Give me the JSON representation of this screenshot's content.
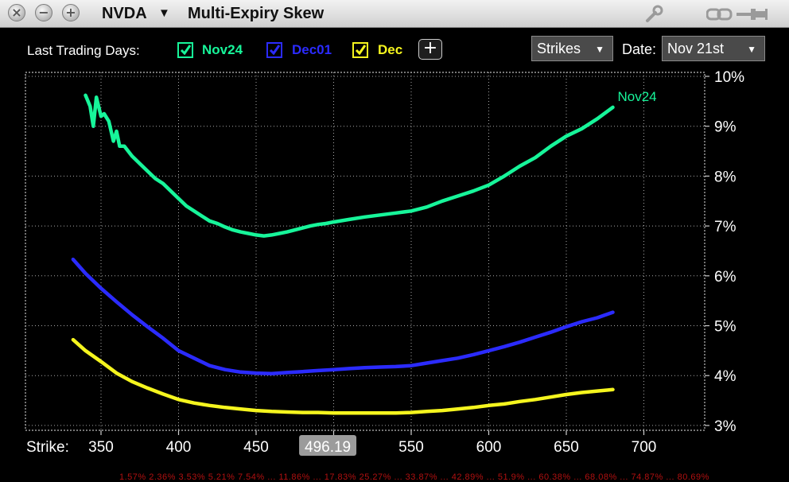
{
  "window": {
    "ticker": "NVDA",
    "title": "Multi-Expiry Skew"
  },
  "controls": {
    "last_trading_days_label": "Last Trading Days:",
    "series_toggles": [
      {
        "label": "Nov24",
        "color": "#17f59a",
        "checked": true
      },
      {
        "label": "Dec01",
        "color": "#2b2bff",
        "checked": true
      },
      {
        "label": "Dec",
        "color": "#f5f51e",
        "checked": true
      }
    ],
    "add_label": "+",
    "x_mode": "Strikes",
    "date_label": "Date:",
    "date_value": "Nov 21st"
  },
  "chart_data": {
    "type": "line",
    "xlabel": "Strike:",
    "x_ticks": [
      350,
      400,
      450,
      500,
      550,
      600,
      650,
      700
    ],
    "x_tick_labels": [
      "350",
      "400",
      "450",
      "",
      "550",
      "600",
      "650",
      "700"
    ],
    "xlim": [
      315,
      740
    ],
    "y_ticks": [
      "3%",
      "4%",
      "5%",
      "6%",
      "7%",
      "8%",
      "9%",
      "10%"
    ],
    "y_tick_values": [
      3,
      4,
      5,
      6,
      7,
      8,
      9,
      10
    ],
    "ylim": [
      3,
      10
    ],
    "grid": true,
    "cursor": {
      "x": 496.19,
      "label": "496.19"
    },
    "series": [
      {
        "name": "Nov24",
        "color": "#17f59a",
        "label_on_chart": true,
        "x": [
          340,
          343,
          345,
          347,
          350,
          352,
          355,
          358,
          360,
          362,
          365,
          370,
          375,
          380,
          385,
          390,
          395,
          400,
          405,
          410,
          415,
          420,
          425,
          430,
          435,
          440,
          445,
          450,
          455,
          460,
          465,
          470,
          475,
          480,
          485,
          490,
          495,
          500,
          510,
          520,
          530,
          540,
          550,
          560,
          570,
          580,
          590,
          600,
          610,
          620,
          630,
          640,
          650,
          660,
          670,
          680
        ],
        "y": [
          9.62,
          9.4,
          9.0,
          9.58,
          9.2,
          9.25,
          9.1,
          8.7,
          8.9,
          8.6,
          8.6,
          8.4,
          8.25,
          8.1,
          7.95,
          7.85,
          7.7,
          7.55,
          7.4,
          7.3,
          7.2,
          7.1,
          7.05,
          6.98,
          6.92,
          6.88,
          6.85,
          6.82,
          6.8,
          6.82,
          6.85,
          6.88,
          6.92,
          6.96,
          7.0,
          7.03,
          7.05,
          7.08,
          7.13,
          7.18,
          7.22,
          7.26,
          7.3,
          7.38,
          7.5,
          7.6,
          7.7,
          7.82,
          8.0,
          8.2,
          8.37,
          8.6,
          8.8,
          8.95,
          9.15,
          9.38
        ]
      },
      {
        "name": "Dec01",
        "color": "#2b2bff",
        "label_on_chart": false,
        "x": [
          332,
          340,
          350,
          360,
          370,
          380,
          390,
          400,
          410,
          420,
          430,
          440,
          450,
          460,
          470,
          480,
          490,
          500,
          510,
          520,
          530,
          540,
          550,
          560,
          570,
          580,
          590,
          600,
          610,
          620,
          630,
          640,
          650,
          660,
          670,
          680
        ],
        "y": [
          6.33,
          6.05,
          5.75,
          5.48,
          5.22,
          4.98,
          4.75,
          4.5,
          4.35,
          4.2,
          4.12,
          4.07,
          4.05,
          4.04,
          4.06,
          4.08,
          4.1,
          4.12,
          4.14,
          4.16,
          4.17,
          4.18,
          4.2,
          4.25,
          4.3,
          4.35,
          4.42,
          4.5,
          4.58,
          4.67,
          4.77,
          4.87,
          4.98,
          5.08,
          5.16,
          5.27
        ]
      },
      {
        "name": "Dec",
        "color": "#f5f51e",
        "label_on_chart": false,
        "x": [
          332,
          340,
          350,
          360,
          370,
          380,
          390,
          400,
          410,
          420,
          430,
          440,
          450,
          460,
          470,
          480,
          490,
          500,
          510,
          520,
          530,
          540,
          550,
          560,
          570,
          580,
          590,
          600,
          610,
          620,
          630,
          640,
          650,
          660,
          670,
          680
        ],
        "y": [
          4.72,
          4.5,
          4.28,
          4.05,
          3.88,
          3.75,
          3.63,
          3.52,
          3.45,
          3.4,
          3.36,
          3.33,
          3.3,
          3.28,
          3.27,
          3.26,
          3.26,
          3.25,
          3.25,
          3.25,
          3.25,
          3.25,
          3.26,
          3.28,
          3.3,
          3.33,
          3.36,
          3.4,
          3.43,
          3.48,
          3.52,
          3.57,
          3.62,
          3.66,
          3.69,
          3.72
        ]
      }
    ]
  },
  "footer_strip": "1.57%  2.36%  3.53%  5.21%  7.54%  ...  11.86%  ...  17.83%  25.27%  ...  33.87%  ...  42.89%  ...  51.9%  ...  60.38%  ...  68.08%  ...  74.87%  ...  80.69%"
}
